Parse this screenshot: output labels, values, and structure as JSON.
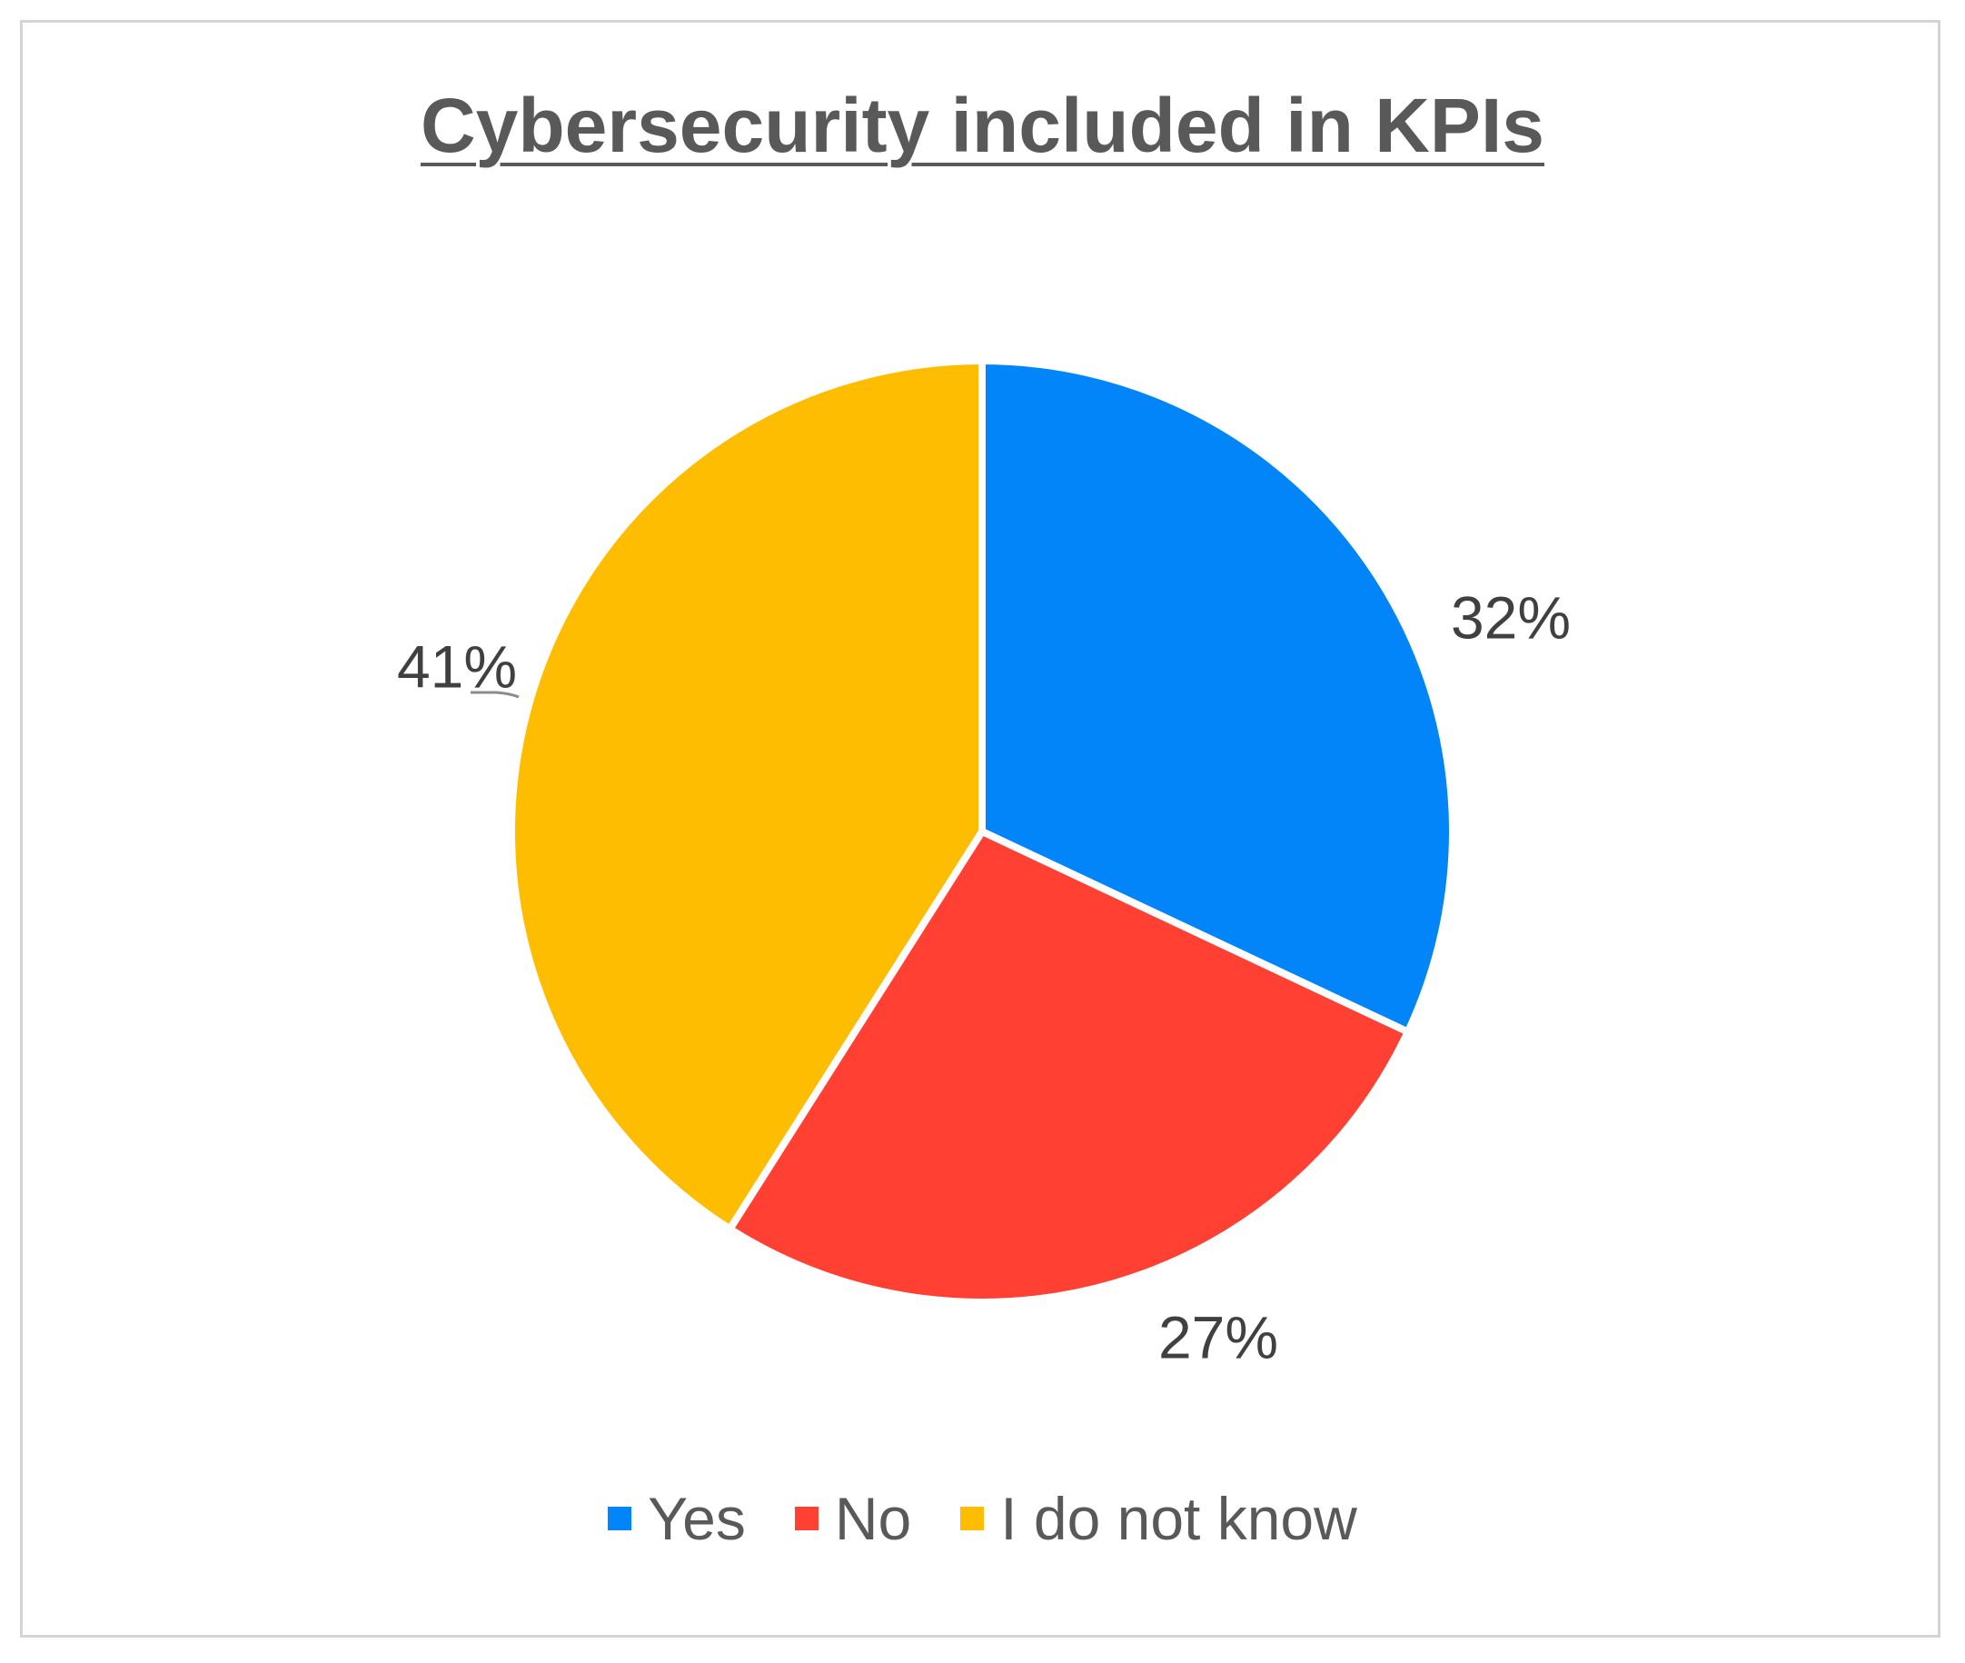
{
  "chart_data": {
    "type": "pie",
    "title": "Cybersecurity included in KPIs",
    "categories": [
      "Yes",
      "No",
      "I do not know"
    ],
    "values": [
      32,
      27,
      41
    ],
    "data_labels": [
      "32%",
      "27%",
      "41%"
    ],
    "colors": [
      "#0285F9",
      "#FF4032",
      "#FEBD01"
    ],
    "start_angle_deg": 0,
    "direction": "clockwise",
    "legend_position": "bottom"
  }
}
